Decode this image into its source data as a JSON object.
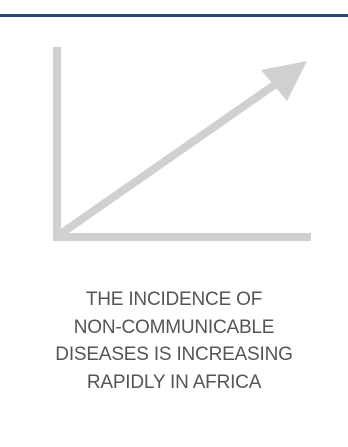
{
  "caption": {
    "lines": [
      "THE INCIDENCE OF",
      "NON-COMMUNICABLE",
      "DISEASES IS INCREASING",
      "RAPIDLY IN AFRICA"
    ]
  },
  "icon": {
    "name": "rising-trend-arrow-icon"
  },
  "colors": {
    "rule": "#2c4a6e",
    "icon": "#d0d0d0",
    "text": "#555555"
  }
}
